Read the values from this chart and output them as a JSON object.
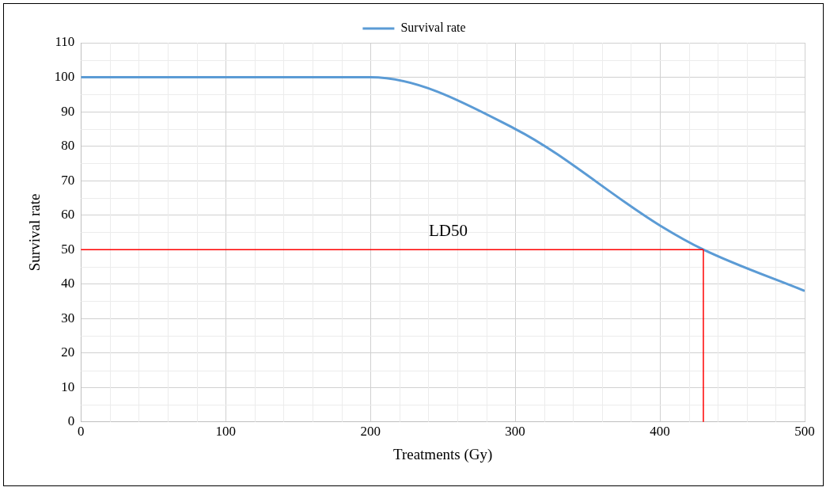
{
  "chart_data": {
    "type": "line",
    "xlabel": "Treatments (Gy)",
    "ylabel": "Survival rate",
    "x": [
      0,
      100,
      200,
      300,
      400,
      430,
      500
    ],
    "series": [
      {
        "name": "Survival rate",
        "color": "#5b9bd5",
        "values": [
          100,
          100,
          100,
          85,
          57,
          50,
          38
        ]
      }
    ],
    "xlim": [
      0,
      500
    ],
    "xticks": [
      0,
      100,
      200,
      300,
      400,
      500
    ],
    "ylim": [
      0,
      110
    ],
    "yticks": [
      0,
      10,
      20,
      30,
      40,
      50,
      60,
      70,
      80,
      90,
      100,
      110
    ],
    "ref_lines": [
      {
        "axis": "y",
        "value": 50,
        "color": "#ff0000",
        "label": "LD50"
      },
      {
        "axis": "x",
        "value": 430,
        "color": "#ff0000"
      }
    ],
    "grid": true,
    "legend": "top",
    "marker": "none",
    "line_style": "solid"
  }
}
